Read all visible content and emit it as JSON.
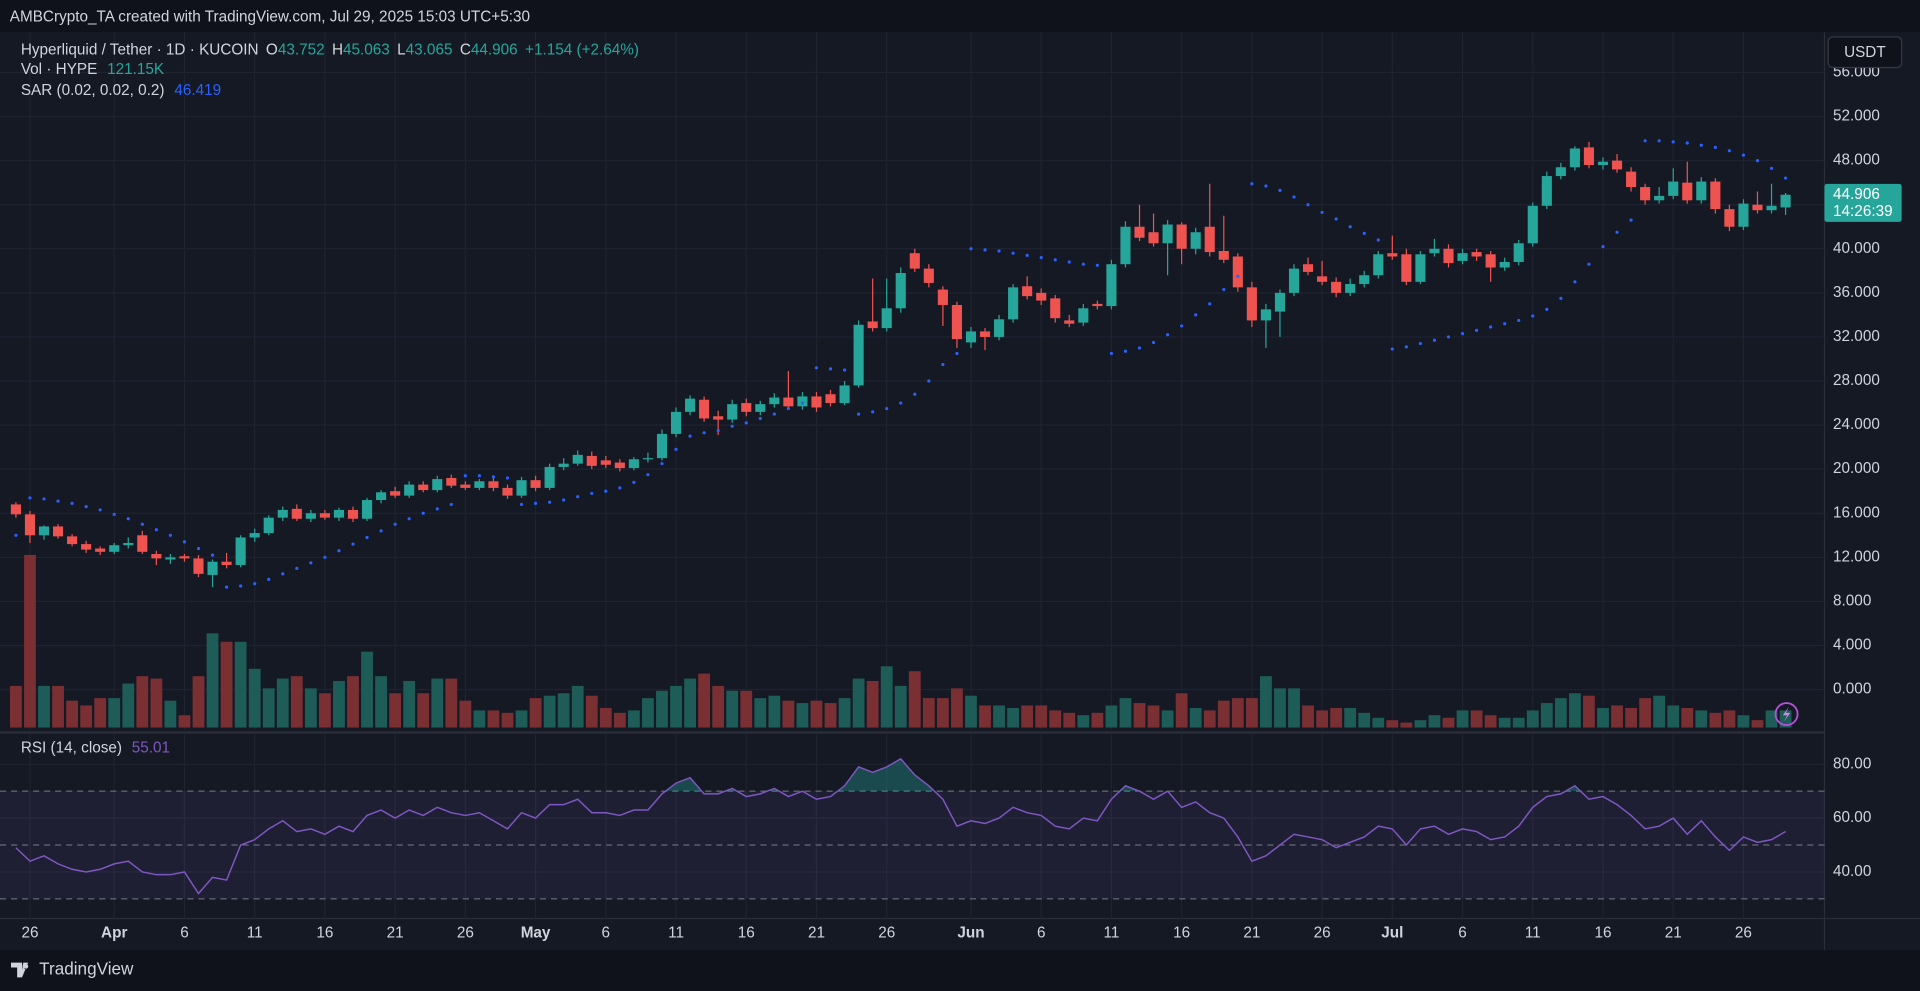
{
  "header": {
    "attribution": "AMBCrypto_TA created with TradingView.com, Jul 29, 2025 15:03 UTC+5:30"
  },
  "legend": {
    "symbol": "Hyperliquid / Tether · 1D · KUCOIN",
    "o": "O",
    "open": "43.752",
    "h": "H",
    "high": "45.063",
    "l": "L",
    "low": "43.065",
    "c": "C",
    "close": "44.906",
    "change": "+1.154 (+2.64%)",
    "vol_name": "Vol · HYPE",
    "vol_value": "121.15K",
    "sar_name": "SAR (0.02, 0.02, 0.2)",
    "sar_value": "46.419",
    "rsi_name": "RSI (14, close)",
    "rsi_value": "55.01"
  },
  "currency": "USDT",
  "price_tag": {
    "price": "44.906",
    "countdown": "14:26:39"
  },
  "footer": {
    "brand": "TradingView"
  },
  "chart_data": {
    "type": "candlestick",
    "up_color": "#26a69a",
    "down_color": "#ef5350",
    "sar_color": "#2962ff",
    "rsi_color": "#7e57c2",
    "grid": true,
    "categories": [
      null,
      "26",
      null,
      null,
      null,
      null,
      null,
      "Apr",
      null,
      null,
      null,
      null,
      "6",
      null,
      null,
      null,
      null,
      "11",
      null,
      null,
      null,
      null,
      "16",
      null,
      null,
      null,
      null,
      "21",
      null,
      null,
      null,
      null,
      "26",
      null,
      null,
      null,
      null,
      "May",
      null,
      null,
      null,
      null,
      "6",
      null,
      null,
      null,
      null,
      "11",
      null,
      null,
      null,
      null,
      "16",
      null,
      null,
      null,
      null,
      "21",
      null,
      null,
      null,
      null,
      "26",
      null,
      null,
      null,
      null,
      null,
      "Jun",
      null,
      null,
      null,
      null,
      "6",
      null,
      null,
      null,
      null,
      "11",
      null,
      null,
      null,
      null,
      "16",
      null,
      null,
      null,
      null,
      "21",
      null,
      null,
      null,
      null,
      "26",
      null,
      null,
      null,
      null,
      "Jul",
      null,
      null,
      null,
      null,
      "6",
      null,
      null,
      null,
      null,
      "11",
      null,
      null,
      null,
      null,
      "16",
      null,
      null,
      null,
      null,
      "21",
      null,
      null,
      null,
      null,
      "26",
      null,
      null,
      null
    ],
    "candles": [
      [
        16.8,
        17.0,
        15.6,
        15.9
      ],
      [
        15.9,
        16.2,
        13.3,
        14.0
      ],
      [
        14.0,
        14.9,
        13.6,
        14.8
      ],
      [
        14.8,
        15.0,
        13.7,
        13.9
      ],
      [
        13.9,
        14.1,
        13.0,
        13.2
      ],
      [
        13.2,
        13.5,
        12.4,
        12.7
      ],
      [
        12.8,
        13.0,
        12.2,
        12.5
      ],
      [
        12.5,
        13.3,
        12.3,
        13.1
      ],
      [
        13.1,
        13.8,
        12.8,
        13.3
      ],
      [
        14.0,
        14.4,
        12.3,
        12.5
      ],
      [
        12.3,
        12.6,
        11.3,
        11.9
      ],
      [
        11.8,
        12.3,
        11.4,
        12.0
      ],
      [
        12.1,
        12.3,
        11.6,
        11.9
      ],
      [
        11.9,
        12.2,
        10.2,
        10.5
      ],
      [
        10.4,
        11.8,
        9.3,
        11.6
      ],
      [
        11.6,
        12.4,
        11.0,
        11.3
      ],
      [
        11.3,
        14.0,
        11.1,
        13.8
      ],
      [
        13.8,
        14.6,
        13.4,
        14.2
      ],
      [
        14.2,
        15.8,
        14.0,
        15.6
      ],
      [
        15.6,
        16.6,
        15.3,
        16.3
      ],
      [
        16.4,
        16.8,
        15.3,
        15.5
      ],
      [
        15.5,
        16.3,
        15.2,
        16.0
      ],
      [
        16.0,
        16.3,
        15.4,
        15.6
      ],
      [
        15.6,
        16.5,
        15.3,
        16.3
      ],
      [
        16.3,
        16.6,
        15.2,
        15.5
      ],
      [
        15.5,
        17.4,
        15.3,
        17.2
      ],
      [
        17.2,
        18.1,
        16.9,
        17.9
      ],
      [
        18.0,
        18.4,
        17.4,
        17.6
      ],
      [
        17.6,
        18.9,
        17.4,
        18.6
      ],
      [
        18.6,
        18.9,
        17.9,
        18.1
      ],
      [
        18.1,
        19.4,
        17.9,
        19.1
      ],
      [
        19.2,
        19.5,
        18.3,
        18.5
      ],
      [
        18.6,
        18.9,
        18.1,
        18.3
      ],
      [
        18.3,
        19.1,
        18.1,
        18.9
      ],
      [
        18.9,
        19.2,
        18.0,
        18.3
      ],
      [
        18.3,
        18.6,
        17.3,
        17.6
      ],
      [
        17.6,
        19.3,
        17.4,
        19.0
      ],
      [
        19.0,
        19.4,
        18.0,
        18.3
      ],
      [
        18.3,
        20.5,
        18.1,
        20.2
      ],
      [
        20.2,
        21.0,
        19.9,
        20.5
      ],
      [
        20.5,
        21.7,
        20.3,
        21.3
      ],
      [
        21.2,
        21.6,
        20.0,
        20.3
      ],
      [
        20.8,
        21.2,
        20.1,
        20.4
      ],
      [
        20.6,
        20.9,
        19.8,
        20.1
      ],
      [
        20.1,
        21.1,
        19.9,
        20.9
      ],
      [
        20.9,
        21.5,
        20.6,
        21.0
      ],
      [
        21.0,
        23.6,
        20.8,
        23.2
      ],
      [
        23.2,
        25.6,
        22.9,
        25.2
      ],
      [
        25.2,
        26.7,
        24.9,
        26.4
      ],
      [
        26.3,
        26.6,
        24.3,
        24.6
      ],
      [
        24.8,
        25.3,
        23.1,
        24.5
      ],
      [
        24.5,
        26.3,
        24.2,
        25.9
      ],
      [
        26.0,
        26.4,
        24.8,
        25.2
      ],
      [
        25.2,
        26.2,
        24.9,
        25.9
      ],
      [
        25.9,
        26.9,
        25.6,
        26.5
      ],
      [
        26.5,
        28.9,
        25.4,
        25.7
      ],
      [
        25.7,
        27.0,
        25.4,
        26.6
      ],
      [
        26.6,
        27.0,
        25.2,
        25.6
      ],
      [
        26.8,
        27.2,
        25.7,
        26.0
      ],
      [
        26.0,
        28.0,
        25.8,
        27.6
      ],
      [
        27.6,
        33.5,
        27.4,
        33.1
      ],
      [
        33.4,
        37.3,
        32.5,
        32.8
      ],
      [
        32.8,
        37.3,
        32.5,
        34.6
      ],
      [
        34.6,
        38.3,
        34.2,
        37.8
      ],
      [
        39.6,
        40.0,
        37.9,
        38.2
      ],
      [
        38.2,
        38.6,
        36.5,
        36.9
      ],
      [
        36.3,
        36.6,
        33.0,
        34.9
      ],
      [
        34.9,
        35.2,
        31.0,
        31.8
      ],
      [
        31.5,
        32.9,
        31.0,
        32.5
      ],
      [
        32.5,
        32.8,
        30.8,
        32.0
      ],
      [
        32.0,
        34.0,
        31.7,
        33.6
      ],
      [
        33.6,
        36.8,
        33.3,
        36.5
      ],
      [
        36.6,
        37.5,
        35.4,
        35.7
      ],
      [
        36.0,
        36.4,
        34.9,
        35.3
      ],
      [
        35.5,
        35.8,
        33.3,
        33.7
      ],
      [
        33.5,
        34.0,
        32.9,
        33.2
      ],
      [
        33.3,
        35.0,
        33.0,
        34.6
      ],
      [
        35.0,
        35.3,
        34.5,
        34.8
      ],
      [
        34.8,
        39.0,
        34.5,
        38.6
      ],
      [
        38.6,
        42.5,
        38.3,
        42.0
      ],
      [
        42.0,
        44.0,
        40.7,
        41.0
      ],
      [
        41.5,
        43.2,
        40.2,
        40.5
      ],
      [
        40.5,
        42.6,
        37.6,
        42.2
      ],
      [
        42.2,
        42.4,
        38.6,
        40.0
      ],
      [
        40.0,
        41.9,
        39.5,
        41.5
      ],
      [
        42.0,
        45.9,
        39.3,
        39.7
      ],
      [
        39.8,
        43.0,
        38.7,
        39.0
      ],
      [
        39.3,
        39.6,
        36.1,
        36.5
      ],
      [
        36.5,
        37.0,
        32.9,
        33.5
      ],
      [
        33.5,
        35.0,
        31.0,
        34.5
      ],
      [
        34.3,
        36.3,
        32.0,
        36.0
      ],
      [
        36.0,
        38.6,
        35.7,
        38.2
      ],
      [
        38.6,
        39.2,
        37.6,
        37.9
      ],
      [
        37.5,
        38.9,
        36.7,
        37.0
      ],
      [
        37.0,
        37.4,
        35.6,
        36.0
      ],
      [
        36.0,
        37.3,
        35.7,
        36.8
      ],
      [
        36.8,
        38.0,
        36.5,
        37.6
      ],
      [
        37.6,
        39.8,
        37.3,
        39.5
      ],
      [
        39.6,
        41.2,
        39.0,
        39.3
      ],
      [
        39.5,
        40.0,
        36.7,
        37.0
      ],
      [
        37.0,
        39.8,
        36.8,
        39.5
      ],
      [
        39.6,
        40.9,
        39.3,
        40.0
      ],
      [
        40.0,
        40.4,
        38.3,
        38.7
      ],
      [
        38.9,
        40.0,
        38.6,
        39.6
      ],
      [
        39.7,
        40.0,
        38.9,
        39.3
      ],
      [
        39.5,
        39.8,
        37.0,
        38.3
      ],
      [
        38.3,
        39.2,
        38.0,
        38.8
      ],
      [
        38.8,
        40.8,
        38.5,
        40.5
      ],
      [
        40.5,
        44.2,
        40.2,
        43.9
      ],
      [
        43.9,
        47.0,
        43.6,
        46.6
      ],
      [
        46.6,
        47.8,
        46.3,
        47.4
      ],
      [
        47.4,
        49.3,
        47.1,
        49.1
      ],
      [
        49.2,
        49.7,
        47.3,
        47.6
      ],
      [
        47.6,
        48.3,
        47.2,
        47.9
      ],
      [
        48.0,
        48.6,
        46.9,
        47.2
      ],
      [
        47.0,
        47.4,
        45.2,
        45.6
      ],
      [
        45.6,
        45.9,
        44.0,
        44.4
      ],
      [
        44.4,
        45.6,
        44.1,
        44.8
      ],
      [
        44.8,
        47.3,
        44.5,
        46.1
      ],
      [
        46.0,
        47.9,
        44.1,
        44.4
      ],
      [
        44.4,
        46.5,
        44.1,
        46.1
      ],
      [
        46.1,
        46.4,
        43.2,
        43.6
      ],
      [
        43.6,
        44.0,
        41.6,
        42.0
      ],
      [
        42.0,
        44.5,
        41.7,
        44.1
      ],
      [
        44.0,
        45.2,
        43.2,
        43.5
      ],
      [
        43.5,
        45.9,
        43.2,
        43.9
      ],
      [
        43.752,
        45.063,
        43.065,
        44.906
      ]
    ],
    "volumes": [
      294,
      1220,
      294,
      294,
      190,
      156,
      208,
      208,
      311,
      363,
      346,
      190,
      87,
      363,
      666,
      606,
      606,
      415,
      277,
      346,
      363,
      277,
      242,
      329,
      363,
      536,
      363,
      242,
      329,
      242,
      346,
      346,
      190,
      121,
      121,
      104,
      121,
      208,
      225,
      242,
      294,
      225,
      138,
      104,
      121,
      208,
      260,
      294,
      346,
      381,
      294,
      260,
      260,
      208,
      225,
      190,
      173,
      190,
      173,
      208,
      346,
      329,
      433,
      294,
      398,
      208,
      208,
      277,
      225,
      156,
      156,
      138,
      156,
      156,
      121,
      104,
      87,
      104,
      156,
      208,
      173,
      156,
      121,
      242,
      138,
      121,
      190,
      208,
      208,
      363,
      277,
      277,
      156,
      121,
      138,
      138,
      104,
      69,
      52,
      35,
      52,
      87,
      69,
      121,
      121,
      87,
      69,
      69,
      121,
      173,
      208,
      242,
      225,
      138,
      156,
      138,
      208,
      225,
      156,
      138,
      121,
      104,
      121,
      87,
      52,
      121,
      121.15
    ],
    "sar": [
      14.0,
      17.4,
      17.3,
      17.1,
      16.9,
      16.6,
      16.3,
      15.9,
      15.5,
      15.0,
      14.5,
      14.0,
      13.4,
      12.8,
      12.2,
      9.3,
      9.4,
      9.6,
      10.0,
      10.5,
      11.0,
      11.5,
      12.0,
      12.6,
      13.2,
      13.8,
      14.4,
      15.0,
      15.5,
      16.0,
      16.4,
      16.8,
      19.4,
      19.4,
      19.3,
      19.2,
      16.8,
      16.9,
      17.0,
      17.2,
      17.5,
      17.8,
      18.0,
      18.3,
      18.8,
      19.5,
      20.5,
      21.8,
      23.0,
      23.3,
      23.5,
      23.9,
      24.2,
      24.6,
      25.0,
      25.5,
      26.0,
      29.2,
      29.1,
      29.0,
      25.0,
      25.2,
      25.5,
      26.0,
      26.8,
      28.0,
      29.5,
      30.5,
      40.0,
      39.9,
      39.8,
      39.6,
      39.4,
      39.2,
      39.0,
      38.8,
      38.6,
      38.5,
      30.5,
      30.7,
      31.0,
      31.5,
      32.2,
      33.0,
      34.0,
      35.0,
      36.3,
      37.5,
      45.9,
      45.7,
      45.3,
      44.7,
      44.0,
      43.3,
      42.7,
      42.0,
      41.4,
      40.8,
      30.9,
      31.1,
      31.4,
      31.7,
      32.0,
      32.3,
      32.6,
      32.9,
      33.2,
      33.5,
      33.9,
      34.5,
      35.5,
      37.0,
      38.6,
      40.2,
      41.5,
      42.6,
      49.8,
      49.8,
      49.7,
      49.6,
      49.4,
      49.2,
      48.9,
      48.5,
      48.0,
      47.3,
      46.419
    ],
    "rsi": [
      49,
      44,
      46,
      43,
      41,
      40,
      41,
      43,
      44,
      40,
      39,
      39,
      40,
      32,
      38,
      37,
      50,
      52,
      56,
      59,
      55,
      56,
      54,
      57,
      55,
      61,
      63,
      60,
      63,
      61,
      64,
      62,
      61,
      62,
      59,
      56,
      62,
      60,
      65,
      65,
      67,
      62,
      62,
      61,
      63,
      63,
      69,
      73,
      75,
      69,
      69,
      71,
      68,
      69,
      71,
      68,
      70,
      67,
      68,
      72,
      79,
      77,
      79,
      82,
      76,
      72,
      67,
      57,
      59,
      58,
      60,
      64,
      62,
      61,
      57,
      56,
      60,
      59,
      67,
      72,
      70,
      67,
      70,
      64,
      66,
      62,
      60,
      53,
      44,
      46,
      50,
      54,
      53,
      52,
      49,
      51,
      53,
      57,
      56,
      50,
      56,
      57,
      54,
      56,
      55,
      52,
      53,
      57,
      64,
      68,
      69,
      72,
      67,
      68,
      65,
      61,
      56,
      57,
      60,
      54,
      59,
      53,
      48,
      53,
      51,
      52,
      55.01
    ],
    "ylim": [
      -3.67,
      59.67
    ],
    "yticks": [
      {
        "value": 0,
        "label": "0.000"
      },
      {
        "value": 4,
        "label": "4.000"
      },
      {
        "value": 8,
        "label": "8.000"
      },
      {
        "value": 12,
        "label": "12.000"
      },
      {
        "value": 16,
        "label": "16.000"
      },
      {
        "value": 20,
        "label": "20.000"
      },
      {
        "value": 24,
        "label": "24.000"
      },
      {
        "value": 28,
        "label": "28.000"
      },
      {
        "value": 32,
        "label": "32.000"
      },
      {
        "value": 36,
        "label": "36.000"
      },
      {
        "value": 40,
        "label": "40.000"
      },
      {
        "value": 44,
        "label": "44.000"
      },
      {
        "value": 48,
        "label": "48.000"
      },
      {
        "value": 52,
        "label": "52.000"
      },
      {
        "value": 56,
        "label": "56.000"
      }
    ],
    "rsi_lim": [
      22.7,
      90.9
    ],
    "rsi_ticks": [
      {
        "value": 40,
        "label": "40.00"
      },
      {
        "value": 60,
        "label": "60.00"
      },
      {
        "value": 80,
        "label": "80.00"
      }
    ],
    "rsi_levels": [
      70,
      50,
      30
    ]
  }
}
